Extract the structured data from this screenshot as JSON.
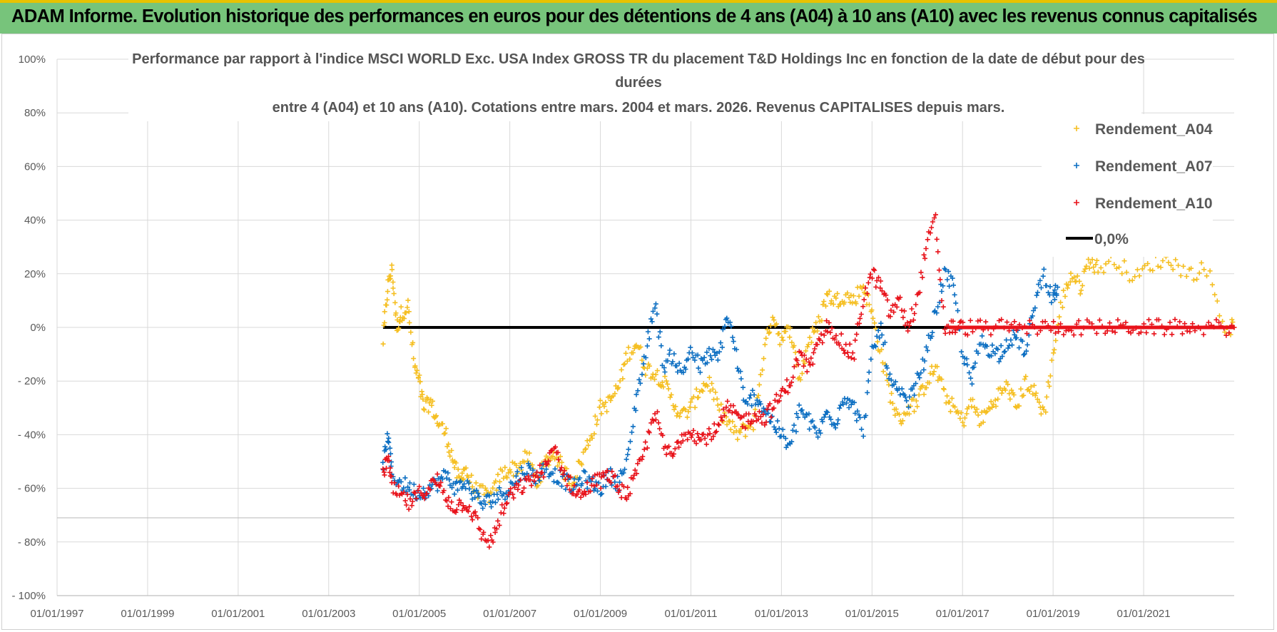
{
  "header": {
    "title": "ADAM Informe. Evolution historique des performances en euros pour des détentions de 4 ans (A04) à 10 ans (A10) avec les revenus connus capitalisés"
  },
  "colors": {
    "banner": "#77c47b",
    "A04": "#f5bf22",
    "A07": "#0d6fc2",
    "A10": "#e8121a",
    "zero": "#000000"
  },
  "chart_data": {
    "type": "scatter",
    "title_lines": [
      "Performance par rapport à l'indice MSCI WORLD Exc. USA Index GROSS TR  du placement T&D Holdings Inc en fonction de la date de début pour des",
      "durées",
      "entre 4 (A04) et 10 ans (A10).  Cotations entre mars. 2004 et mars. 2026. Revenus CAPITALISES depuis mars."
    ],
    "xlabel": "",
    "ylabel": "",
    "xlim": [
      1997.0,
      2023.0
    ],
    "ylim": [
      -100,
      100
    ],
    "x_ticks": [
      1997,
      1999,
      2001,
      2003,
      2005,
      2007,
      2009,
      2011,
      2013,
      2015,
      2017,
      2019,
      2021
    ],
    "x_tick_labels": [
      "01/01/1997",
      "01/01/1999",
      "01/01/2001",
      "01/01/2003",
      "01/01/2005",
      "01/01/2007",
      "01/01/2009",
      "01/01/2011",
      "01/01/2013",
      "01/01/2015",
      "01/01/2017",
      "01/01/2019",
      "01/01/2021"
    ],
    "y_ticks": [
      100,
      80,
      60,
      40,
      20,
      0,
      -20,
      -40,
      -60,
      -80,
      -100
    ],
    "y_tick_labels": [
      "100%",
      "80%",
      "60%",
      "40%",
      "20%",
      "0%",
      "- 20%",
      "- 40%",
      "- 60%",
      "- 80%",
      "- 100%"
    ],
    "grid": true,
    "legend_position": "right",
    "series": [
      {
        "name": "Rendement_A04",
        "marker": "+",
        "x": [
          2004.2,
          2004.3,
          2004.4,
          2004.5,
          2004.6,
          2004.75,
          2004.9,
          2005.0,
          2005.1,
          2005.25,
          2005.4,
          2005.6,
          2005.75,
          2005.9,
          2006.0,
          2006.2,
          2006.4,
          2006.6,
          2006.8,
          2007.0,
          2007.2,
          2007.4,
          2007.6,
          2007.8,
          2008.0,
          2008.2,
          2008.4,
          2008.6,
          2008.8,
          2009.0,
          2009.2,
          2009.4,
          2009.6,
          2009.8,
          2010.0,
          2010.2,
          2010.4,
          2010.6,
          2010.8,
          2011.0,
          2011.2,
          2011.4,
          2011.6,
          2011.8,
          2012.0,
          2012.2,
          2012.4,
          2012.6,
          2012.8,
          2013.0,
          2013.2,
          2013.4,
          2013.6,
          2013.8,
          2014.0,
          2014.2,
          2014.4,
          2014.6,
          2014.8,
          2015.0,
          2015.2,
          2015.4,
          2015.6,
          2015.8,
          2016.0,
          2016.2,
          2016.4,
          2016.6,
          2016.8,
          2017.0,
          2017.2,
          2017.4,
          2017.6,
          2017.8,
          2018.0,
          2018.2,
          2018.4,
          2018.6,
          2018.8,
          2019.0,
          2019.2,
          2019.4,
          2019.6,
          2019.8,
          2020.0,
          2020.4,
          2020.8,
          2021.2,
          2021.6,
          2022.0,
          2022.4,
          2022.8,
          2023.0
        ],
        "y": [
          -5,
          15,
          22,
          0,
          5,
          8,
          -15,
          -20,
          -30,
          -28,
          -35,
          -40,
          -50,
          -58,
          -52,
          -60,
          -62,
          -63,
          -55,
          -53,
          -52,
          -48,
          -58,
          -50,
          -47,
          -54,
          -57,
          -49,
          -40,
          -30,
          -28,
          -22,
          -10,
          -6,
          -15,
          -17,
          -20,
          -28,
          -33,
          -30,
          -23,
          -20,
          -30,
          -35,
          -40,
          -38,
          -35,
          -10,
          5,
          -5,
          0,
          -20,
          -5,
          0,
          12,
          10,
          12,
          10,
          16,
          5,
          -10,
          -25,
          -35,
          -30,
          -28,
          -20,
          -15,
          -25,
          -30,
          -35,
          -28,
          -35,
          -30,
          -25,
          -22,
          -30,
          -20,
          -25,
          -32,
          -10,
          10,
          20,
          15,
          25,
          22,
          25,
          18,
          24,
          25,
          20,
          22,
          0,
          0
        ]
      },
      {
        "name": "Rendement_A07",
        "marker": "+",
        "x": [
          2004.2,
          2004.3,
          2004.4,
          2004.6,
          2004.8,
          2005.0,
          2005.2,
          2005.4,
          2005.6,
          2005.8,
          2006.0,
          2006.2,
          2006.4,
          2006.6,
          2006.8,
          2007.0,
          2007.2,
          2007.4,
          2007.6,
          2007.8,
          2008.0,
          2008.2,
          2008.4,
          2008.6,
          2008.8,
          2009.0,
          2009.2,
          2009.4,
          2009.6,
          2009.8,
          2010.0,
          2010.2,
          2010.4,
          2010.6,
          2010.8,
          2011.0,
          2011.2,
          2011.4,
          2011.6,
          2011.8,
          2012.0,
          2012.2,
          2012.4,
          2012.6,
          2012.8,
          2013.0,
          2013.2,
          2013.4,
          2013.6,
          2013.8,
          2014.0,
          2014.2,
          2014.4,
          2014.6,
          2014.8,
          2015.0,
          2015.2,
          2015.4,
          2015.6,
          2015.8,
          2016.0,
          2016.2,
          2016.4,
          2016.6,
          2016.8,
          2017.0,
          2017.2,
          2017.4,
          2017.6,
          2017.8,
          2018.0,
          2018.2,
          2018.4,
          2018.6,
          2018.8,
          2019.0,
          2019.1
        ],
        "y": [
          -52,
          -40,
          -55,
          -58,
          -60,
          -62,
          -60,
          -58,
          -55,
          -60,
          -58,
          -62,
          -66,
          -64,
          -62,
          -60,
          -55,
          -53,
          -56,
          -52,
          -55,
          -57,
          -60,
          -56,
          -58,
          -60,
          -55,
          -58,
          -50,
          -25,
          -10,
          10,
          -15,
          -10,
          -18,
          -8,
          -15,
          -10,
          -12,
          5,
          -10,
          -30,
          -25,
          -30,
          -35,
          -40,
          -45,
          -30,
          -35,
          -40,
          -32,
          -35,
          -25,
          -30,
          -38,
          -10,
          0,
          -20,
          -25,
          -28,
          -20,
          -10,
          5,
          20,
          15,
          -10,
          -20,
          -5,
          -8,
          -10,
          -5,
          -3,
          -10,
          10,
          20,
          10,
          15
        ]
      },
      {
        "name": "Rendement_A10",
        "marker": "+",
        "x": [
          2004.2,
          2004.3,
          2004.4,
          2004.6,
          2004.8,
          2005.0,
          2005.2,
          2005.4,
          2005.6,
          2005.8,
          2006.0,
          2006.2,
          2006.4,
          2006.6,
          2006.8,
          2007.0,
          2007.2,
          2007.4,
          2007.6,
          2007.8,
          2008.0,
          2008.2,
          2008.4,
          2008.6,
          2008.8,
          2009.0,
          2009.2,
          2009.4,
          2009.6,
          2009.8,
          2010.0,
          2010.2,
          2010.4,
          2010.6,
          2010.8,
          2011.0,
          2011.2,
          2011.4,
          2011.6,
          2011.8,
          2012.0,
          2012.2,
          2012.4,
          2012.6,
          2012.8,
          2013.0,
          2013.2,
          2013.4,
          2013.6,
          2013.8,
          2014.0,
          2014.2,
          2014.4,
          2014.6,
          2014.8,
          2015.0,
          2015.2,
          2015.4,
          2015.6,
          2015.8,
          2016.0,
          2016.2,
          2016.4,
          2016.6,
          2016.8,
          2017.0,
          2017.4,
          2017.8,
          2018.2,
          2018.6,
          2019.0,
          2019.4,
          2019.8,
          2020.2,
          2020.6,
          2021.0,
          2021.4,
          2021.8,
          2022.2,
          2022.6,
          2023.0
        ],
        "y": [
          -55,
          -48,
          -60,
          -63,
          -66,
          -62,
          -60,
          -57,
          -64,
          -67,
          -65,
          -70,
          -78,
          -80,
          -70,
          -63,
          -60,
          -58,
          -55,
          -52,
          -45,
          -55,
          -60,
          -63,
          -58,
          -57,
          -55,
          -60,
          -62,
          -55,
          -45,
          -30,
          -45,
          -48,
          -40,
          -38,
          -42,
          -40,
          -38,
          -30,
          -33,
          -35,
          -32,
          -34,
          -30,
          -25,
          -20,
          -10,
          -15,
          -8,
          0,
          -2,
          -8,
          -10,
          10,
          20,
          15,
          5,
          10,
          0,
          10,
          30,
          40,
          0,
          0,
          0,
          0,
          0,
          0,
          0,
          0,
          0,
          0,
          0,
          0,
          0,
          0,
          0,
          0,
          0,
          0
        ]
      },
      {
        "name": "0,0%",
        "type": "line",
        "x": [
          2004.2,
          2023.0
        ],
        "y": [
          0,
          0
        ]
      }
    ]
  }
}
